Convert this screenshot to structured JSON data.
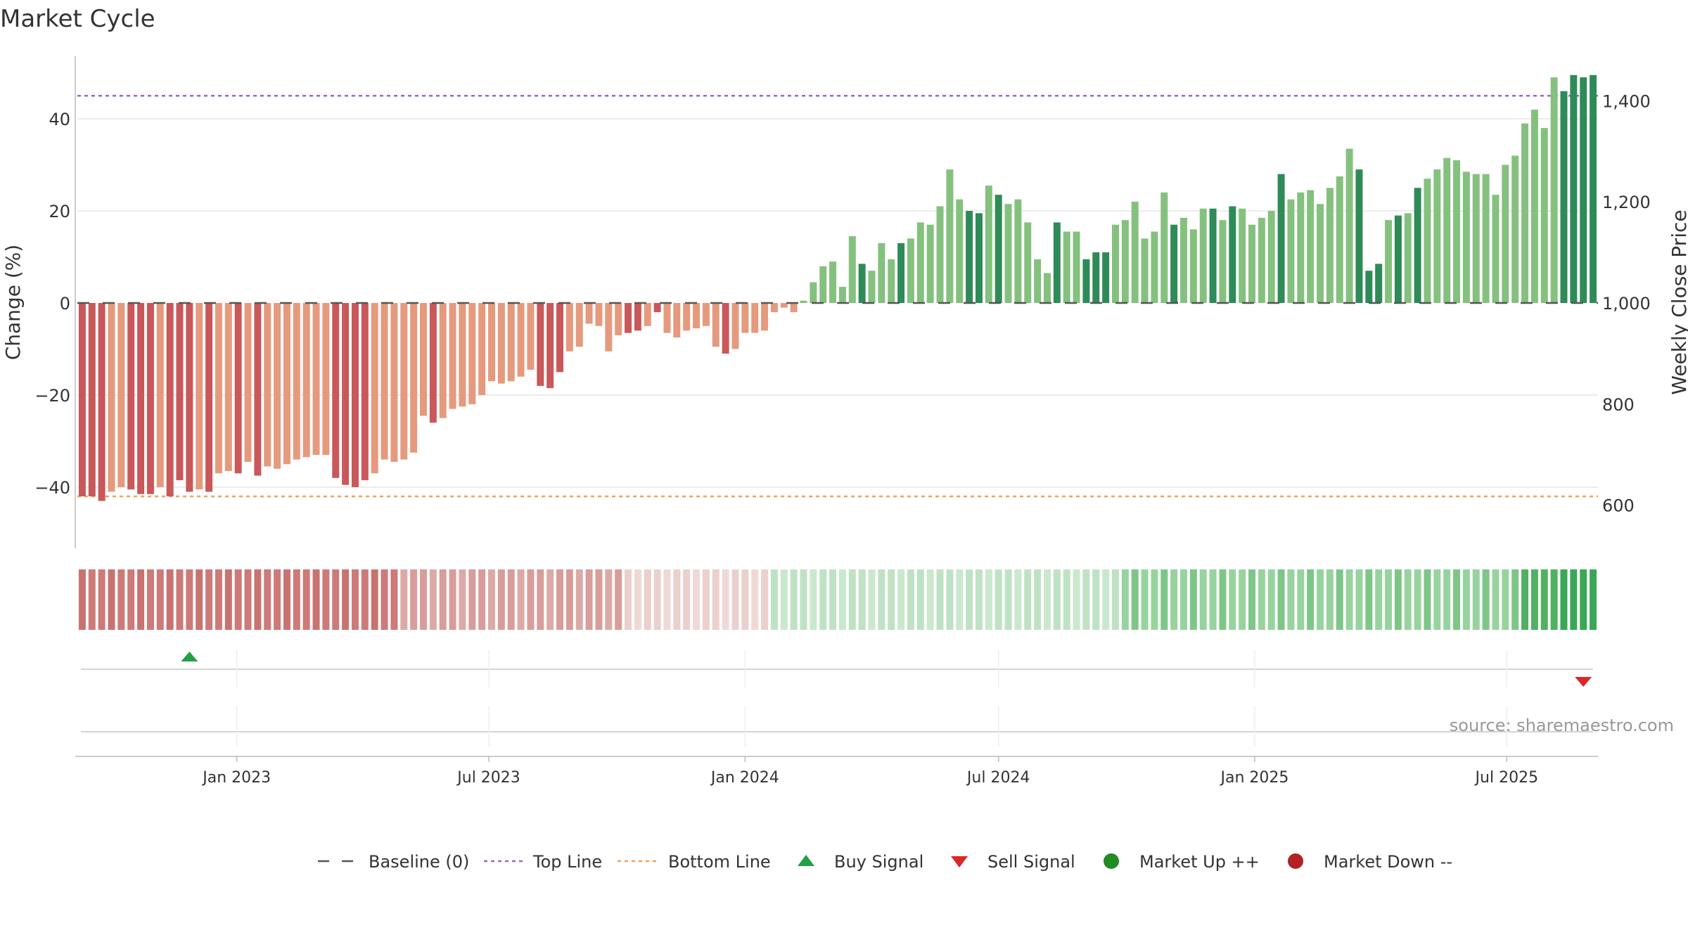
{
  "title": "Market Cycle",
  "source": "source: sharemaestro.com",
  "colors": {
    "neg_dark": "#c9585a",
    "neg_light": "#e59a7e",
    "pos_dark": "#2e8b57",
    "pos_light": "#85c17e",
    "top_line": "#9966cc",
    "bottom_line": "#f0a060",
    "baseline": "#555555",
    "buy": "#22a046",
    "sell": "#d92828",
    "market_up": "#228b22",
    "market_down": "#b22222",
    "grid": "#e6e6e6"
  },
  "chart_data": {
    "type": "bar",
    "x_start": "2022-09-12",
    "x_step_days": 7,
    "ylabel": "Change (%)",
    "y2label": "Weekly Close Price",
    "ylim": [
      -54,
      54
    ],
    "yticks": [
      -40,
      -20,
      0,
      20,
      40
    ],
    "ytick_labels": [
      "−40",
      "−20",
      "0",
      "20",
      "40"
    ],
    "y2ticks": [
      600,
      800,
      1000,
      1200,
      1400
    ],
    "y2tick_labels": [
      "600",
      "800",
      "1,000",
      "1,200",
      "1,400"
    ],
    "top_line": 45,
    "bottom_line": -42,
    "x_ticks": [
      {
        "date": "2023-01-01",
        "label": "Jan 2023"
      },
      {
        "date": "2023-07-01",
        "label": "Jul 2023"
      },
      {
        "date": "2024-01-01",
        "label": "Jan 2024"
      },
      {
        "date": "2024-07-01",
        "label": "Jul 2024"
      },
      {
        "date": "2025-01-01",
        "label": "Jan 2025"
      },
      {
        "date": "2025-07-01",
        "label": "Jul 2025"
      }
    ],
    "values": [
      -42,
      -42,
      -43,
      -41,
      -40,
      -40.5,
      -41.5,
      -41.5,
      -40,
      -42,
      -38.5,
      -41,
      -40.5,
      -41,
      -37,
      -36.5,
      -37,
      -34.5,
      -37.5,
      -35.5,
      -36,
      -35,
      -34,
      -33.5,
      -33,
      -33,
      -38,
      -39.5,
      -40,
      -38.5,
      -37,
      -34,
      -34.5,
      -34,
      -32.5,
      -24.5,
      -26,
      -25,
      -23,
      -22.5,
      -22,
      -20,
      -17,
      -17.5,
      -17,
      -16,
      -14.5,
      -18,
      -18.5,
      -15,
      -10.5,
      -9.5,
      -4.5,
      -5,
      -10.5,
      -7,
      -6.5,
      -6,
      -5,
      -2,
      -6.5,
      -7.5,
      -6,
      -5.5,
      -5,
      -9.5,
      -11,
      -10,
      -6.5,
      -6.5,
      -6,
      -2,
      -1,
      -2,
      0.5,
      4.5,
      8,
      9,
      3.5,
      14.5,
      8.5,
      7,
      13,
      9.5,
      13,
      14,
      17.5,
      17,
      21,
      29,
      22.5,
      20,
      19.5,
      25.5,
      23.5,
      21.5,
      22.5,
      17.5,
      9.5,
      6.5,
      17.5,
      15.5,
      15.5,
      9.5,
      11,
      11,
      17,
      18,
      22,
      14,
      15.5,
      24,
      17,
      18.5,
      16,
      20.5,
      20.5,
      18,
      21,
      20.5,
      17,
      18.5,
      20,
      28,
      22.5,
      24,
      24.5,
      21.5,
      25,
      27.5,
      33.5,
      29,
      7,
      8.5,
      18,
      19,
      19.5,
      25,
      27,
      29,
      31.5,
      31,
      28.5,
      28,
      28,
      23.5,
      30,
      32,
      39,
      42,
      38,
      49,
      46,
      49.5,
      49,
      49.5
    ],
    "bar_shade": "dddlldddldddldlldldlllllllddddlllllldlllllllllldddllllllddldlllllldllllllllllllldllldllllllddldllllldlldddlllllldllldldlllldllllllldddldldlllllllllllllldddddldllld",
    "status_strip": "nnnnnnnnnnnnnnnnnnnnnnnnnnnnnnnnnmmmmmmmmmmmmmmmmmmmmmmmlllllllllllllllLLLLLLLLLLLLLLLLLLLLLLLLLLLLLLLLLLLLPPPPPPPPPPPPPPPPPPPPPPPPPPPPPPPPPPPPPPPPPPPPPPPPPPPPPPPPPPPPPPPPPPP",
    "buy_signals": [
      "2022-11-28"
    ],
    "sell_signals": [
      "2025-08-25"
    ]
  },
  "legend": [
    {
      "key": "baseline",
      "label": "Baseline (0)"
    },
    {
      "key": "top",
      "label": "Top Line"
    },
    {
      "key": "bottom",
      "label": "Bottom Line"
    },
    {
      "key": "buy",
      "label": "Buy Signal"
    },
    {
      "key": "sell",
      "label": "Sell Signal"
    },
    {
      "key": "up",
      "label": "Market Up ++"
    },
    {
      "key": "down",
      "label": "Market Down --"
    }
  ]
}
